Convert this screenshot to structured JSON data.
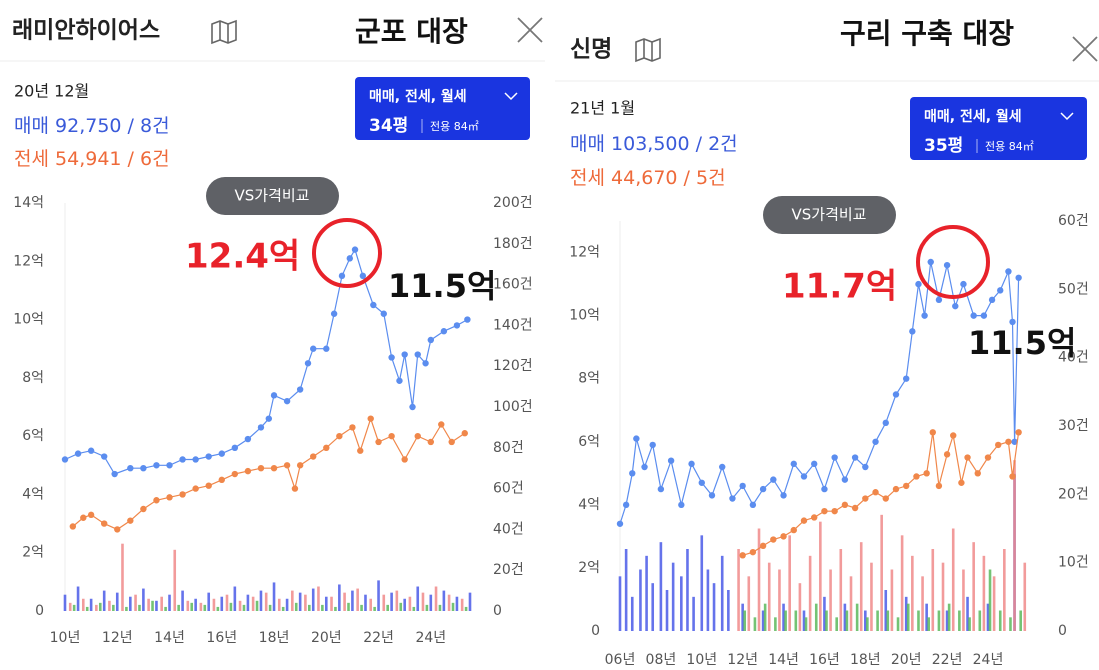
{
  "chart_data": [
    {
      "type": "line",
      "title": "래미안하이어스",
      "annotation": "군포 대장",
      "date": "20년 12월",
      "button": "VS가격비교",
      "dropdown": {
        "types": "매매, 전세, 월세",
        "size": "34평",
        "area": "전용 84㎡"
      },
      "price_labels": [
        {
          "text": "12.4억",
          "color": "#e8222a"
        },
        {
          "text": "11.5억",
          "color": "#111111"
        }
      ],
      "xlim": [
        2010,
        2025.5
      ],
      "xticks": [
        {
          "value": 2010,
          "label": "10년"
        },
        {
          "value": 2012,
          "label": "12년"
        },
        {
          "value": 2014,
          "label": "14년"
        },
        {
          "value": 2016,
          "label": "16년"
        },
        {
          "value": 2018,
          "label": "18년"
        },
        {
          "value": 2020,
          "label": "20년"
        },
        {
          "value": 2022,
          "label": "22년"
        },
        {
          "value": 2024,
          "label": "24년"
        }
      ],
      "ylim": [
        0,
        14
      ],
      "yticks": [
        0,
        {
          "value": 2,
          "label": "2억"
        },
        {
          "value": 4,
          "label": "4억"
        },
        {
          "value": 6,
          "label": "6억"
        },
        {
          "value": 8,
          "label": "8억"
        },
        {
          "value": 10,
          "label": "10억"
        },
        {
          "value": 12,
          "label": "12억"
        },
        {
          "value": 14,
          "label": "14억"
        }
      ],
      "y2lim": [
        0,
        200
      ],
      "y2ticks": [
        0,
        {
          "value": 20,
          "label": "20건"
        },
        {
          "value": 40,
          "label": "40건"
        },
        {
          "value": 60,
          "label": "60건"
        },
        {
          "value": 80,
          "label": "80건"
        },
        {
          "value": 100,
          "label": "100건"
        },
        {
          "value": 120,
          "label": "120건"
        },
        {
          "value": 140,
          "label": "140건"
        },
        {
          "value": 160,
          "label": "160건"
        },
        {
          "value": 180,
          "label": "180건"
        },
        {
          "value": 200,
          "label": "200건"
        }
      ],
      "series": [
        {
          "name": "매매",
          "summary": "92,750 / 8건",
          "color": "#5b8def",
          "x": [
            2010,
            2010.5,
            2011,
            2011.5,
            2011.9,
            2012.5,
            2013,
            2013.5,
            2014,
            2014.5,
            2015,
            2015.5,
            2016,
            2016.5,
            2017,
            2017.5,
            2017.8,
            2018,
            2018.5,
            2019,
            2019.3,
            2019.5,
            2020,
            2020.3,
            2020.6,
            2020.9,
            2021.1,
            2021.4,
            2021.8,
            2022.2,
            2022.5,
            2022.8,
            2023,
            2023.3,
            2023.5,
            2023.8,
            2024,
            2024.5,
            2025,
            2025.4
          ],
          "values": [
            5.2,
            5.4,
            5.5,
            5.3,
            4.7,
            4.9,
            4.9,
            5.0,
            5.0,
            5.2,
            5.2,
            5.3,
            5.4,
            5.6,
            5.9,
            6.3,
            6.6,
            7.4,
            7.2,
            7.6,
            8.5,
            9.0,
            9.0,
            10.2,
            11.5,
            12.1,
            12.4,
            11.5,
            10.5,
            10.2,
            8.7,
            7.9,
            8.8,
            7.0,
            8.8,
            8.5,
            9.3,
            9.6,
            9.8,
            10.0
          ]
        },
        {
          "name": "전세",
          "summary": "54,941 / 6건",
          "color": "#f0874a",
          "x": [
            2010.3,
            2010.7,
            2011,
            2011.5,
            2012,
            2012.5,
            2013,
            2013.5,
            2014,
            2014.5,
            2015,
            2015.5,
            2016,
            2016.5,
            2017,
            2017.5,
            2018,
            2018.5,
            2018.8,
            2019,
            2019.5,
            2020,
            2020.5,
            2021,
            2021.3,
            2021.7,
            2022,
            2022.5,
            2023,
            2023.5,
            2024,
            2024.4,
            2024.8,
            2025.3
          ],
          "values": [
            2.9,
            3.2,
            3.3,
            3.0,
            2.8,
            3.1,
            3.5,
            3.8,
            3.9,
            4.0,
            4.2,
            4.3,
            4.5,
            4.7,
            4.8,
            4.9,
            4.9,
            5.0,
            4.2,
            5.0,
            5.3,
            5.6,
            6.0,
            6.3,
            5.5,
            6.6,
            5.8,
            6.0,
            5.2,
            6.0,
            5.8,
            6.4,
            5.8,
            6.1
          ]
        }
      ],
      "volume_series": [
        {
          "color": "#4a5ae8",
          "axis": "y2",
          "x": [
            2010,
            2010.5,
            2011,
            2011.5,
            2012,
            2012.5,
            2013,
            2013.5,
            2014,
            2014.5,
            2015,
            2015.5,
            2016,
            2016.5,
            2017,
            2017.5,
            2018,
            2018.5,
            2019,
            2019.5,
            2020,
            2020.5,
            2021,
            2021.5,
            2022,
            2022.5,
            2023,
            2023.5,
            2024,
            2024.5,
            2025,
            2025.5
          ],
          "values": [
            8,
            12,
            6,
            10,
            9,
            7,
            11,
            5,
            8,
            10,
            6,
            9,
            7,
            12,
            8,
            10,
            14,
            6,
            9,
            11,
            7,
            13,
            10,
            8,
            15,
            9,
            6,
            12,
            8,
            10,
            7,
            9
          ]
        },
        {
          "color": "#f08a8a",
          "axis": "y2",
          "x": [
            2010.2,
            2010.7,
            2011.2,
            2011.7,
            2012.2,
            2012.7,
            2013.2,
            2013.7,
            2014.2,
            2014.7,
            2015.2,
            2015.7,
            2016.2,
            2016.7,
            2017.2,
            2017.7,
            2018.2,
            2018.7,
            2019.2,
            2019.7,
            2020.2,
            2020.7,
            2021.2,
            2021.7,
            2022.2,
            2022.7,
            2023.2,
            2023.7,
            2024.2,
            2024.7,
            2025.2
          ],
          "values": [
            4,
            6,
            3,
            5,
            33,
            8,
            6,
            7,
            30,
            5,
            4,
            6,
            8,
            5,
            7,
            9,
            6,
            10,
            8,
            12,
            7,
            9,
            11,
            6,
            8,
            10,
            7,
            9,
            12,
            8,
            6
          ]
        },
        {
          "color": "#5cb85c",
          "axis": "y2",
          "x": [
            2010.35,
            2010.85,
            2011.35,
            2011.85,
            2012.35,
            2012.85,
            2013.35,
            2013.85,
            2014.35,
            2014.85,
            2015.35,
            2015.85,
            2016.35,
            2016.85,
            2017.35,
            2017.85,
            2018.35,
            2018.85,
            2019.35,
            2019.85,
            2020.35,
            2020.85,
            2021.35,
            2021.85,
            2022.35,
            2022.85,
            2023.35,
            2023.85,
            2024.35,
            2024.85,
            2025.35
          ],
          "values": [
            3,
            2,
            4,
            3,
            2,
            3,
            5,
            2,
            3,
            4,
            3,
            2,
            4,
            3,
            5,
            3,
            2,
            4,
            3,
            3,
            2,
            4,
            3,
            2,
            3,
            4,
            2,
            3,
            3,
            4,
            2
          ]
        }
      ]
    },
    {
      "type": "line",
      "title": "신명",
      "annotation": "구리 구축 대장",
      "date": "21년 1월",
      "button": "VS가격비교",
      "dropdown": {
        "types": "매매, 전세, 월세",
        "size": "35평",
        "area": "전용 84㎡"
      },
      "price_labels": [
        {
          "text": "11.7억",
          "color": "#e8222a"
        },
        {
          "text": "11.5억",
          "color": "#111111"
        }
      ],
      "xlim": [
        2006,
        2026.3
      ],
      "xticks": [
        {
          "value": 2006,
          "label": "06년"
        },
        {
          "value": 2008,
          "label": "08년"
        },
        {
          "value": 2010,
          "label": "10년"
        },
        {
          "value": 2012,
          "label": "12년"
        },
        {
          "value": 2014,
          "label": "14년"
        },
        {
          "value": 2016,
          "label": "16년"
        },
        {
          "value": 2018,
          "label": "18년"
        },
        {
          "value": 2020,
          "label": "20년"
        },
        {
          "value": 2022,
          "label": "22년"
        },
        {
          "value": 2024,
          "label": "24년"
        }
      ],
      "ylim": [
        0,
        13
      ],
      "yticks": [
        0,
        {
          "value": 2,
          "label": "2억"
        },
        {
          "value": 4,
          "label": "4억"
        },
        {
          "value": 6,
          "label": "6억"
        },
        {
          "value": 8,
          "label": "8억"
        },
        {
          "value": 10,
          "label": "10억"
        },
        {
          "value": 12,
          "label": "12억"
        }
      ],
      "y2lim": [
        0,
        60
      ],
      "y2ticks": [
        0,
        {
          "value": 10,
          "label": "10건"
        },
        {
          "value": 20,
          "label": "20건"
        },
        {
          "value": 30,
          "label": "30건"
        },
        {
          "value": 40,
          "label": "40건"
        },
        {
          "value": 50,
          "label": "50건"
        },
        {
          "value": 60,
          "label": "60건"
        }
      ],
      "series": [
        {
          "name": "매매",
          "summary": "103,500 / 2건",
          "color": "#5b8def",
          "x": [
            2006,
            2006.3,
            2006.6,
            2006.8,
            2007.2,
            2007.6,
            2008,
            2008.5,
            2009,
            2009.5,
            2010,
            2010.5,
            2011,
            2011.5,
            2012,
            2012.5,
            2013,
            2013.5,
            2014,
            2014.5,
            2015,
            2015.5,
            2016,
            2016.5,
            2017,
            2017.5,
            2018,
            2018.5,
            2019,
            2019.5,
            2020,
            2020.3,
            2020.6,
            2020.9,
            2021.2,
            2021.6,
            2022,
            2022.4,
            2022.8,
            2023.3,
            2023.8,
            2024.2,
            2024.6,
            2025,
            2025.2,
            2025.3,
            2025.5
          ],
          "values": [
            3.4,
            4.0,
            5.0,
            6.1,
            5.2,
            5.9,
            4.5,
            5.4,
            4.0,
            5.3,
            4.7,
            4.3,
            5.2,
            4.2,
            4.6,
            4.0,
            4.5,
            4.8,
            4.3,
            5.3,
            4.9,
            5.3,
            4.5,
            5.5,
            4.8,
            5.5,
            5.2,
            6.0,
            6.6,
            7.5,
            8.0,
            9.5,
            11.0,
            10.0,
            11.7,
            10.5,
            11.6,
            10.3,
            11.0,
            10.0,
            10.0,
            10.5,
            10.8,
            11.4,
            9.8,
            6.0,
            11.2
          ]
        },
        {
          "name": "전세",
          "summary": "44,670 / 5건",
          "color": "#f0874a",
          "x": [
            2012,
            2012.5,
            2013,
            2013.5,
            2014,
            2014.5,
            2015,
            2015.5,
            2016,
            2016.5,
            2017,
            2017.5,
            2018,
            2018.5,
            2019,
            2019.5,
            2020,
            2020.5,
            2021,
            2021.3,
            2021.6,
            2022,
            2022.3,
            2022.7,
            2023,
            2023.5,
            2024,
            2024.5,
            2025,
            2025.2,
            2025.5
          ],
          "values": [
            2.4,
            2.5,
            2.7,
            2.9,
            3.0,
            3.2,
            3.5,
            3.6,
            3.8,
            3.8,
            4.0,
            3.9,
            4.2,
            4.4,
            4.2,
            4.5,
            4.6,
            4.9,
            5.0,
            6.3,
            4.6,
            5.6,
            6.2,
            4.7,
            5.5,
            5.0,
            5.5,
            5.9,
            6.0,
            4.9,
            6.3
          ]
        }
      ],
      "volume_series": [
        {
          "color": "#4a5ae8",
          "axis": "y2",
          "x": [
            2006,
            2006.3,
            2006.6,
            2007,
            2007.3,
            2007.6,
            2008,
            2008.3,
            2008.6,
            2009,
            2009.3,
            2009.6,
            2010,
            2010.3,
            2010.6,
            2011,
            2011.3,
            2012,
            2013,
            2014,
            2015,
            2016,
            2017,
            2018,
            2019,
            2020,
            2021,
            2022,
            2023,
            2024,
            2025.3
          ],
          "values": [
            8,
            12,
            5,
            9,
            11,
            7,
            13,
            6,
            10,
            8,
            12,
            5,
            14,
            9,
            7,
            11,
            6,
            4,
            3,
            4,
            3,
            5,
            4,
            3,
            6,
            5,
            4,
            3,
            5,
            4,
            23
          ]
        },
        {
          "color": "#f08a8a",
          "axis": "y2",
          "x": [
            2011.8,
            2012.3,
            2012.8,
            2013.3,
            2013.8,
            2014.3,
            2014.8,
            2015.3,
            2015.8,
            2016.3,
            2016.8,
            2017.3,
            2017.8,
            2018.3,
            2018.8,
            2019.3,
            2019.8,
            2020.3,
            2020.8,
            2021.3,
            2021.8,
            2022.3,
            2022.8,
            2023.3,
            2023.8,
            2024.3,
            2024.8,
            2025.3,
            2025.8
          ],
          "values": [
            12,
            8,
            15,
            10,
            9,
            14,
            7,
            11,
            16,
            9,
            12,
            8,
            13,
            10,
            17,
            9,
            14,
            11,
            8,
            12,
            10,
            15,
            9,
            13,
            11,
            8,
            12,
            25,
            10
          ]
        },
        {
          "color": "#5cb85c",
          "axis": "y2",
          "x": [
            2012.1,
            2012.6,
            2013.1,
            2013.6,
            2014.1,
            2014.6,
            2015.1,
            2015.6,
            2016.1,
            2016.6,
            2017.1,
            2017.6,
            2018.1,
            2018.6,
            2019.1,
            2019.6,
            2020.1,
            2020.6,
            2021.1,
            2021.6,
            2022.1,
            2022.6,
            2023.1,
            2023.6,
            2024.1,
            2024.6,
            2025.1,
            2025.6
          ],
          "values": [
            3,
            2,
            4,
            2,
            3,
            3,
            2,
            4,
            3,
            2,
            3,
            4,
            2,
            3,
            3,
            2,
            4,
            3,
            2,
            3,
            4,
            3,
            2,
            3,
            9,
            3,
            2,
            3
          ]
        }
      ]
    }
  ]
}
